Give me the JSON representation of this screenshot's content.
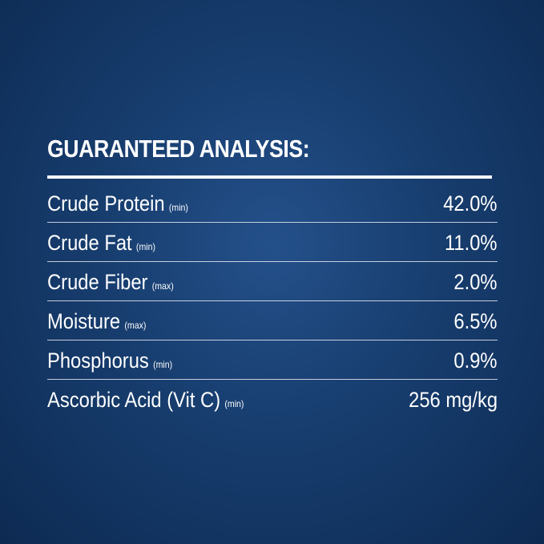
{
  "title": "GUARANTEED ANALYSIS:",
  "rows": [
    {
      "name": "Crude Protein",
      "qualifier": "(min)",
      "value": "42.0%"
    },
    {
      "name": "Crude Fat",
      "qualifier": "(min)",
      "value": "11.0%"
    },
    {
      "name": "Crude Fiber",
      "qualifier": "(max)",
      "value": "2.0%"
    },
    {
      "name": "Moisture",
      "qualifier": "(max)",
      "value": "6.5%"
    },
    {
      "name": "Phosphorus",
      "qualifier": "(min)",
      "value": "0.9%"
    },
    {
      "name": "Ascorbic Acid (Vit C)",
      "qualifier": "(min)",
      "value": "256 mg/kg"
    }
  ]
}
